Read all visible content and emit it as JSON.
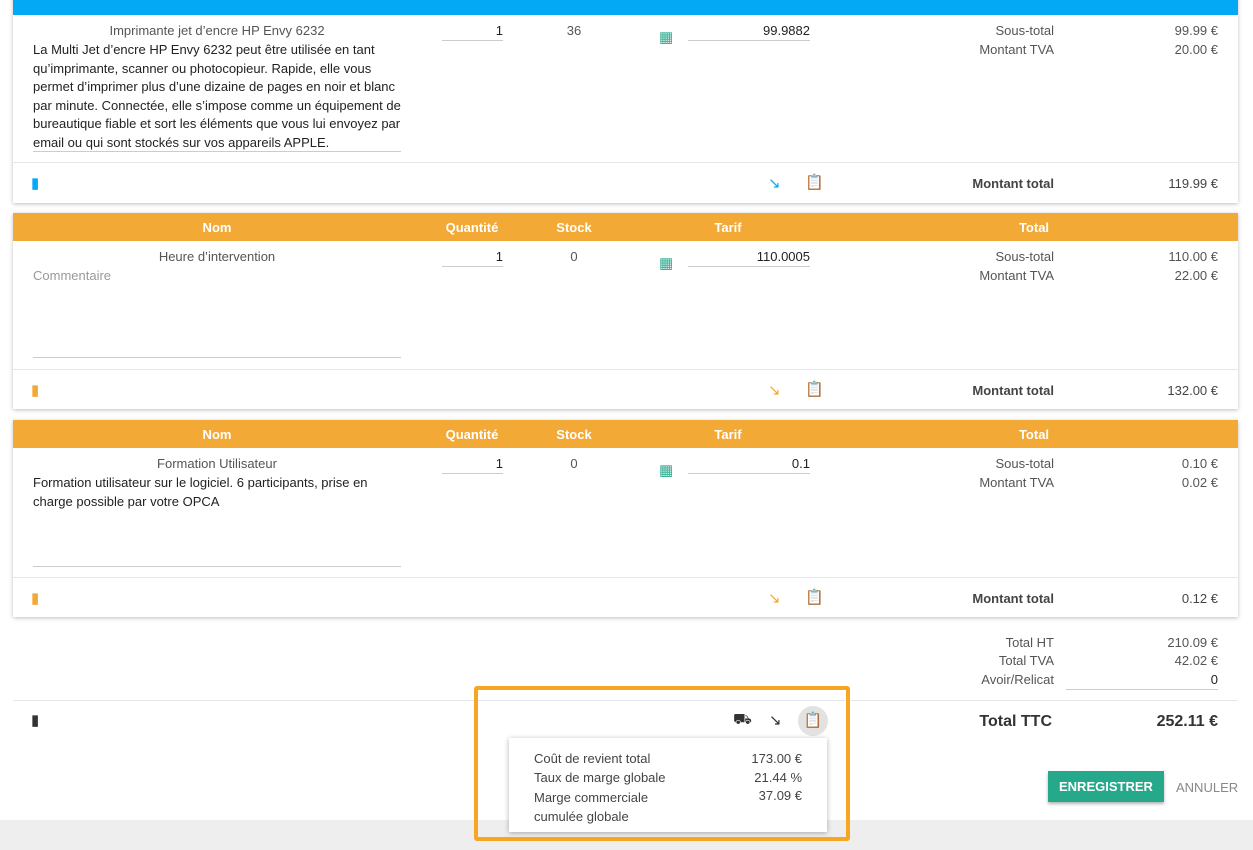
{
  "headers": {
    "name": "Nom",
    "quantity": "Quantité",
    "stock": "Stock",
    "tarif": "Tarif",
    "total": "Total"
  },
  "labels": {
    "subtotal": "Sous-total",
    "vat": "Montant TVA",
    "total": "Montant total"
  },
  "colors": {
    "blue": "#03a9f4",
    "orange": "#f2a935",
    "green": "#26a98b"
  },
  "items": [
    {
      "name": "Imprimante jet d’encre HP Envy 6232",
      "description": "La Multi Jet d’encre HP Envy 6232 peut être utilisée en tant qu’imprimante, scanner ou photocopieur. Rapide, elle vous permet d’imprimer plus d’une dizaine de pages en noir et blanc par minute. Connectée, elle s’impose comme un équipement de bureautique fiable et sort les éléments que vous lui envoyez par email ou qui sont stockés sur vos appareils APPLE.",
      "quantity": "1",
      "stock": "36",
      "tarif": "99.9882",
      "subtotal": "99.99 €",
      "vat": "20.00 €",
      "total": "119.99 €"
    },
    {
      "name": "Heure d’intervention",
      "description_placeholder": "Commentaire",
      "quantity": "1",
      "stock": "0",
      "tarif": "110.0005",
      "subtotal": "110.00 €",
      "vat": "22.00 €",
      "total": "132.00 €"
    },
    {
      "name": "Formation Utilisateur",
      "description": "Formation utilisateur sur le logiciel. 6 participants, prise en charge possible par votre OPCA",
      "quantity": "1",
      "stock": "0",
      "tarif": "0.1",
      "subtotal": "0.10 €",
      "vat": "0.02 €",
      "total": "0.12 €"
    }
  ],
  "totals": {
    "ht_label": "Total HT",
    "ht": "210.09 €",
    "tva_label": "Total TVA",
    "tva": "42.02 €",
    "avoir_label": "Avoir/Relicat",
    "avoir": "0",
    "ttc_label": "Total TTC",
    "ttc": "252.11 €"
  },
  "popup": {
    "rows": [
      {
        "label": "Coût de revient total",
        "value": "173.00 €"
      },
      {
        "label": "Taux de marge globale",
        "value": "21.44 %"
      },
      {
        "label": "Marge commerciale cumulée globale",
        "value": "37.09 €"
      }
    ]
  },
  "buttons": {
    "save": "ENREGISTRER",
    "cancel": "ANNULER"
  }
}
